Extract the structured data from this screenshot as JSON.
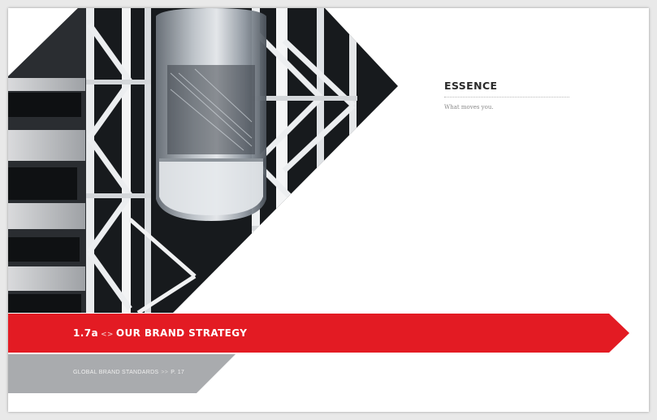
{
  "essence": {
    "heading": "ESSENCE",
    "tagline": "What moves you."
  },
  "section": {
    "number": "1.7a",
    "separator": "<>",
    "title": "OUR BRAND STRATEGY"
  },
  "footer": {
    "label": "GLOBAL BRAND STANDARDS",
    "separator": ">>",
    "page": "P. 17"
  },
  "colors": {
    "brand_red": "#e31b23",
    "gray_band": "#a9abae",
    "text_dark": "#2b2b2b"
  }
}
